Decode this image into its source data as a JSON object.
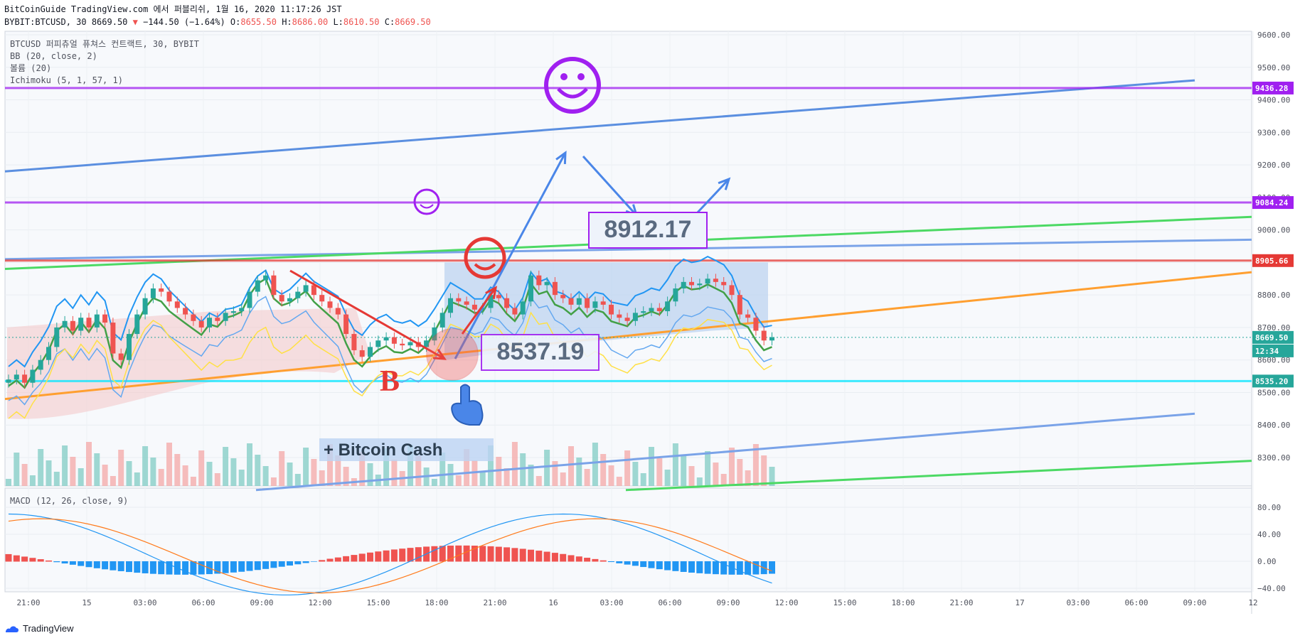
{
  "header": {
    "line1": "BitCoinGuide TradingView.com 에서 퍼블리쉬, 1월 16, 2020 11:17:26 JST",
    "symbol": "BYBIT:BTCUSD, 30 8669.50",
    "change": "−144.50 (−1.64%)",
    "o_label": "O:",
    "o": "8655.50",
    "h_label": "H:",
    "h": "8686.00",
    "l_label": "L:",
    "l": "8610.50",
    "c_label": "C:",
    "c": "8669.50"
  },
  "legend": {
    "title": "BTCUSD 퍼피츄얼 퓨쳐스 컨트랙트, 30, BYBIT",
    "bb": "BB (20, close, 2)",
    "volume": "볼륨 (20)",
    "ichimoku": "Ichimoku (5, 1, 57, 1)"
  },
  "macd_legend": "MACD (12, 26, close, 9)",
  "footer": {
    "brand": "TradingView"
  },
  "colors": {
    "purple": "#a020f0",
    "red_line": "#e53935",
    "cyan": "#00e5ff",
    "up": "#26a69a",
    "down": "#ef5350",
    "bb": "#2196f3",
    "orange": "#ff9800",
    "green": "#43a047",
    "yellow": "#ffeb3b"
  },
  "chart_data": [
    {
      "type": "candlestick",
      "title": "BTCUSD 퍼피츄얼 퓨쳐스 컨트랙트, 30, BYBIT",
      "ylim": [
        8200,
        9600
      ],
      "y_ticks": [
        "9600.00",
        "9500.00",
        "9400.00",
        "9300.00",
        "9200.00",
        "9100.00",
        "9000.00",
        "8900.00",
        "8800.00",
        "8700.00",
        "8600.00",
        "8500.00",
        "8400.00",
        "8300.00"
      ],
      "y_tick_values": [
        9600,
        9500,
        9400,
        9300,
        9200,
        9100,
        9000,
        8900,
        8800,
        8700,
        8600,
        8500,
        8400,
        8300
      ],
      "x_ticks": [
        "21:00",
        "15",
        "03:00",
        "06:00",
        "09:00",
        "12:00",
        "15:00",
        "18:00",
        "21:00",
        "16",
        "03:00",
        "06:00",
        "09:00",
        "12:00",
        "15:00",
        "18:00",
        "21:00",
        "17",
        "03:00",
        "06:00",
        "09:00",
        "12"
      ],
      "price_labels": [
        {
          "text": "9436.28",
          "value": 9436.28,
          "color": "#a020f0"
        },
        {
          "text": "9084.24",
          "value": 9084.24,
          "color": "#a020f0"
        },
        {
          "text": "8905.66",
          "value": 8905.66,
          "color": "#e53935"
        },
        {
          "text": "8669.50",
          "value": 8669.5,
          "color": "#26a69a"
        },
        {
          "text": "12:34",
          "value": 8628,
          "color": "#26a69a"
        },
        {
          "text": "8535.20",
          "value": 8535.2,
          "color": "#26a69a"
        }
      ],
      "horizontal_lines": [
        {
          "value": 9436.28,
          "color": "#a020f0"
        },
        {
          "value": 9084.24,
          "color": "#a020f0"
        },
        {
          "value": 8905.66,
          "color": "#e53935"
        },
        {
          "value": 8535.2,
          "color": "#00e5ff"
        }
      ],
      "annotations": {
        "callout_high": "8912.17",
        "callout_low": "8537.19",
        "letter": "B",
        "note": "+ Bitcoin Cash"
      },
      "closes": [
        8540,
        8555,
        8530,
        8570,
        8600,
        8640,
        8700,
        8720,
        8690,
        8730,
        8700,
        8740,
        8715,
        8620,
        8600,
        8680,
        8740,
        8790,
        8820,
        8810,
        8780,
        8760,
        8740,
        8720,
        8700,
        8730,
        8720,
        8745,
        8750,
        8760,
        8810,
        8845,
        8860,
        8800,
        8780,
        8790,
        8810,
        8830,
        8800,
        8780,
        8760,
        8740,
        8680,
        8630,
        8610,
        8640,
        8660,
        8670,
        8650,
        8645,
        8655,
        8640,
        8660,
        8700,
        8745,
        8790,
        8780,
        8770,
        8755,
        8760,
        8800,
        8790,
        8760,
        8740,
        8780,
        8860,
        8830,
        8840,
        8800,
        8790,
        8770,
        8790,
        8760,
        8780,
        8770,
        8740,
        8730,
        8720,
        8745,
        8750,
        8760,
        8750,
        8780,
        8820,
        8840,
        8830,
        8835,
        8850,
        8840,
        8830,
        8800,
        8740,
        8730,
        8690,
        8660,
        8670
      ],
      "macd_ylim": [
        -45,
        95
      ],
      "macd_ticks": [
        "80.00",
        "40.00",
        "0.00",
        "−40.00"
      ],
      "macd_tick_values": [
        80,
        40,
        0,
        -40
      ]
    }
  ]
}
